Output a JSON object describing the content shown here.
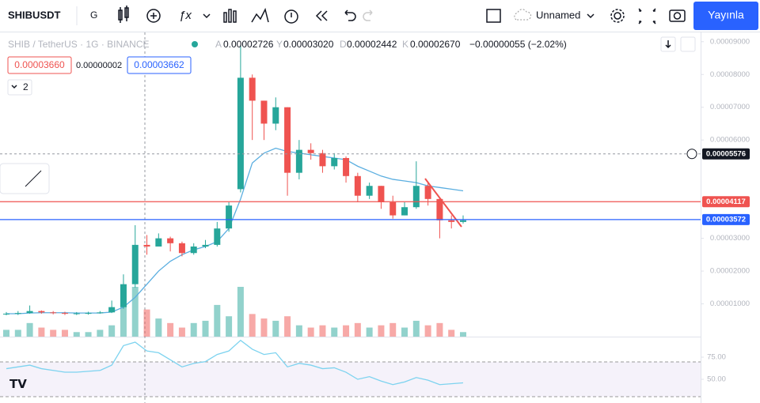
{
  "toolbar": {
    "symbol": "SHIBUSDT",
    "interval": "G",
    "layout_name": "Unnamed",
    "publish": "Yayınla"
  },
  "legend": {
    "title": "SHIB / TetherUS · 1G · BINANCE",
    "o_key": "A",
    "o": "0.00002726",
    "h_key": "Y",
    "h": "0.00003020",
    "l_key": "D",
    "l": "0.00002442",
    "c_key": "K",
    "c": "0.00002670",
    "change": "−0.00000055 (−2.02%)",
    "sell": "0.00003660",
    "spread": "0.00000002",
    "buy": "0.00003662",
    "indicators": "2"
  },
  "chart_data": {
    "type": "candlestick",
    "ylim": [
      0,
      9.26e-05
    ],
    "yticks": [
      {
        "value": 9e-05,
        "label": "0.00009000"
      },
      {
        "value": 8e-05,
        "label": "0.00008000"
      },
      {
        "value": 7e-05,
        "label": "0.00007000"
      },
      {
        "value": 6e-05,
        "label": "0.00006000"
      },
      {
        "value": 3e-05,
        "label": "0.00003000"
      },
      {
        "value": 2e-05,
        "label": "0.00002000"
      },
      {
        "value": 1e-05,
        "label": "0.00001000"
      }
    ],
    "open": [
      6.8e-06,
      7e-06,
      7.2e-06,
      7.8e-06,
      7.4e-06,
      7.2e-06,
      7e-06,
      7.1e-06,
      7.2e-06,
      7.4e-06,
      9e-06,
      1.6e-05,
      2.8e-05,
      2.75e-05,
      3e-05,
      2.85e-05,
      2.55e-05,
      2.75e-05,
      2.8e-05,
      3.3e-05,
      4.5e-05,
      7.9e-05,
      7.2e-05,
      6.5e-05,
      7e-05,
      5e-05,
      5.7e-05,
      5.6e-05,
      5.2e-05,
      5.45e-05,
      4.9e-05,
      4.3e-05,
      4.6e-05,
      4.1e-05,
      3.7e-05,
      3.95e-05,
      4.6e-05,
      4.2e-05,
      3.55e-05,
      3.5e-05
    ],
    "high": [
      7.5e-06,
      7.8e-06,
      9.5e-06,
      8e-06,
      7.8e-06,
      7.6e-06,
      7.5e-06,
      7.6e-06,
      7.8e-06,
      1.1e-05,
      1.9e-05,
      3.4e-05,
      3.1e-05,
      3.15e-05,
      3.05e-05,
      2.9e-05,
      2.85e-05,
      2.95e-05,
      3.5e-05,
      4.1e-05,
      8.9e-05,
      8e-05,
      7.2e-05,
      7.3e-05,
      7e-05,
      6e-05,
      5.9e-05,
      5.7e-05,
      5.6e-05,
      5.5e-05,
      5e-05,
      4.7e-05,
      4.6e-05,
      4.3e-05,
      4.1e-05,
      5.35e-05,
      4.7e-05,
      4.25e-05,
      3.7e-05,
      3.7e-05
    ],
    "low": [
      6.5e-06,
      6.6e-06,
      7e-06,
      7e-06,
      6.8e-06,
      6.6e-06,
      6.6e-06,
      6.7e-06,
      7e-06,
      7.2e-06,
      8.5e-06,
      1.5e-05,
      2.5e-05,
      2.8e-05,
      2.6e-05,
      2.45e-05,
      2.5e-05,
      2.7e-05,
      2.75e-05,
      3.2e-05,
      4.4e-05,
      6e-05,
      6e-05,
      6.3e-05,
      4.3e-05,
      4.8e-05,
      5.4e-05,
      5e-05,
      5.1e-05,
      4.7e-05,
      4.1e-05,
      4.2e-05,
      3.9e-05,
      3.6e-05,
      3.7e-05,
      3.9e-05,
      4e-05,
      3e-05,
      3.3e-05,
      3.45e-05
    ],
    "close": [
      7e-06,
      7.2e-06,
      7.8e-06,
      7.4e-06,
      7.2e-06,
      7e-06,
      7.1e-06,
      7.2e-06,
      7.4e-06,
      9e-06,
      1.6e-05,
      2.8e-05,
      2.75e-05,
      3e-05,
      2.85e-05,
      2.55e-05,
      2.75e-05,
      2.8e-05,
      3.3e-05,
      4e-05,
      7.9e-05,
      7.2e-05,
      6.5e-05,
      7e-05,
      5e-05,
      5.7e-05,
      5.6e-05,
      5.2e-05,
      5.45e-05,
      4.9e-05,
      4.3e-05,
      4.6e-05,
      4.1e-05,
      3.7e-05,
      3.95e-05,
      4.6e-05,
      4.2e-05,
      3.55e-05,
      3.5e-05,
      3.55e-05
    ],
    "volume": [
      3,
      3,
      6,
      4,
      3,
      3,
      2,
      2,
      3,
      5,
      14,
      22,
      12,
      8,
      6,
      4,
      6,
      7,
      14,
      9,
      22,
      10,
      8,
      7,
      9,
      5,
      4,
      5,
      4,
      5,
      6,
      4,
      5,
      6,
      4,
      7,
      5,
      6,
      3,
      2
    ],
    "ma": [
      7e-06,
      7e-06,
      7.2e-06,
      7.3e-06,
      7.3e-06,
      7.3e-06,
      7.2e-06,
      7.2e-06,
      7.2e-06,
      7.5e-06,
      9e-06,
      1.2e-05,
      1.6e-05,
      2e-05,
      2.3e-05,
      2.5e-05,
      2.65e-05,
      2.75e-05,
      2.9e-05,
      3.3e-05,
      4.2e-05,
      5.3e-05,
      5.6e-05,
      5.75e-05,
      5.65e-05,
      5.6e-05,
      5.55e-05,
      5.5e-05,
      5.45e-05,
      5.4e-05,
      5.2e-05,
      5.05e-05,
      4.9e-05,
      4.8e-05,
      4.75e-05,
      4.7e-05,
      4.6e-05,
      4.55e-05,
      4.5e-05,
      4.45e-05
    ],
    "rsi": [
      62,
      64,
      66,
      62,
      60,
      58,
      58,
      59,
      60,
      66,
      88,
      92,
      82,
      80,
      72,
      64,
      68,
      70,
      78,
      82,
      94,
      84,
      78,
      80,
      64,
      68,
      66,
      62,
      63,
      58,
      50,
      53,
      48,
      44,
      47,
      52,
      49,
      44,
      45,
      46
    ],
    "rsi_ylim": [
      25,
      98.2
    ],
    "rsi_yticks": [
      {
        "value": 75,
        "label": "75.00"
      },
      {
        "value": 50,
        "label": "50.00"
      }
    ],
    "levels": [
      {
        "value": 5.576e-05,
        "label": "0.00005576",
        "color": "#131722"
      },
      {
        "value": 4.117e-05,
        "label": "0.00004117",
        "color": "#ef5350"
      },
      {
        "value": 3.572e-05,
        "label": "0.00003572",
        "color": "#2962ff"
      }
    ],
    "up_color": "#26a69a",
    "down_color": "#ef5350",
    "ma_color": "#5aaee0",
    "rsi_color": "#7dd3ef"
  }
}
